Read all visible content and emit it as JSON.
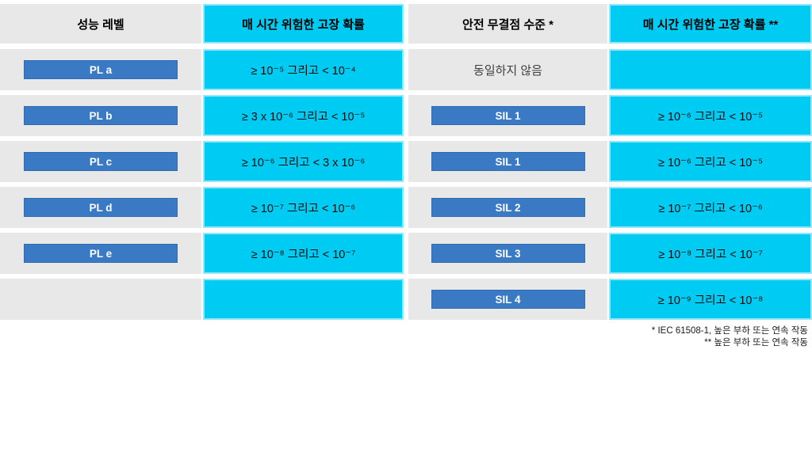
{
  "colors": {
    "cyan": "#00CBF2",
    "cyan_border": "#96E6F8",
    "gray": "#E8E8E8",
    "badge_blue": "#3A7AC4",
    "badge_border": "#2F6CB3"
  },
  "table": {
    "headers": [
      "성능 레벨",
      "매 시간 위험한 고장 확률",
      "안전 무결점 수준 *",
      "매 시간 위험한 고장 확률 **"
    ],
    "rows": [
      {
        "pl": "PL a",
        "pl_prob": "≥ 10⁻⁵ 그리고 < 10⁻⁴",
        "sil_note": "동일하지 않음",
        "sil_prob": ""
      },
      {
        "pl": "PL b",
        "pl_prob": "≥ 3 x 10⁻⁶ 그리고 < 10⁻⁵",
        "sil": "SIL 1",
        "sil_prob": "≥ 10⁻⁶ 그리고 < 10⁻⁵"
      },
      {
        "pl": "PL c",
        "pl_prob": "≥ 10⁻⁶ 그리고 < 3 x 10⁻⁶",
        "sil": "SIL 1",
        "sil_prob": "≥ 10⁻⁶ 그리고 < 10⁻⁵"
      },
      {
        "pl": "PL d",
        "pl_prob": "≥ 10⁻⁷ 그리고 < 10⁻⁶",
        "sil": "SIL 2",
        "sil_prob": "≥ 10⁻⁷ 그리고 < 10⁻⁶"
      },
      {
        "pl": "PL e",
        "pl_prob": "≥ 10⁻⁸ 그리고 < 10⁻⁷",
        "sil": "SIL 3",
        "sil_prob": "≥ 10⁻⁸ 그리고 < 10⁻⁷"
      },
      {
        "pl": "",
        "pl_prob": "",
        "sil": "SIL 4",
        "sil_prob": "≥ 10⁻⁹ 그리고 < 10⁻⁸"
      }
    ],
    "footnotes": [
      "* IEC 61508-1, 높은 부하 또는 연속 작동",
      "** 높은 부하 또는 연속 작동"
    ]
  }
}
